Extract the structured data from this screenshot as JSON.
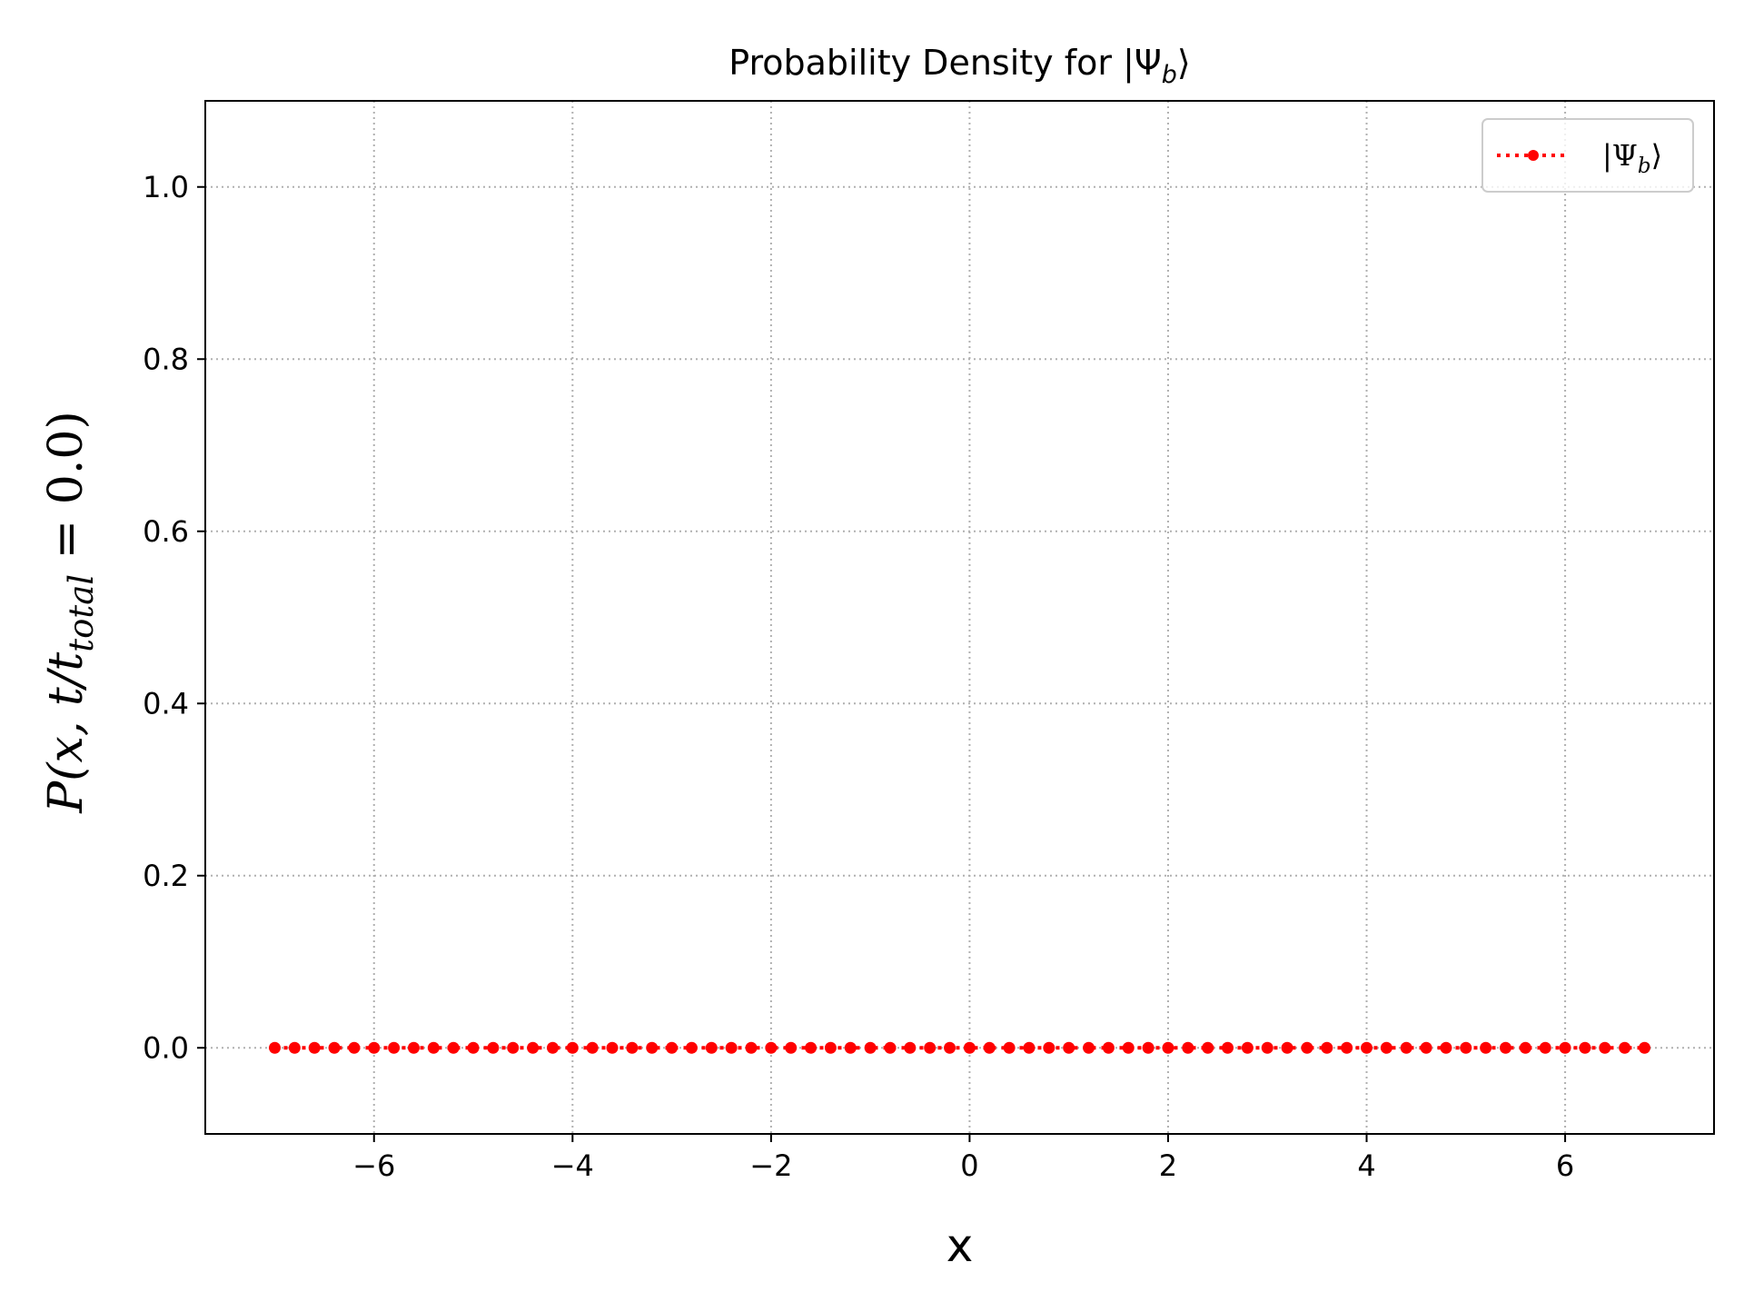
{
  "chart_data": {
    "type": "line",
    "title_text": "Probability Density for ",
    "title_math": {
      "prefix": "|Ψ",
      "sub": "b",
      "suffix": "⟩"
    },
    "xlabel": "x",
    "ylabel": {
      "a": "P(x, t/t",
      "sub": "total",
      "b": " = 0.0)"
    },
    "xlim": [
      -7.7,
      7.5
    ],
    "ylim": [
      -0.1,
      1.1
    ],
    "xticks": [
      -6,
      -4,
      -2,
      0,
      2,
      4,
      6
    ],
    "xtick_labels": [
      "−6",
      "−4",
      "−2",
      "0",
      "2",
      "4",
      "6"
    ],
    "yticks": [
      0.0,
      0.2,
      0.4,
      0.6,
      0.8,
      1.0
    ],
    "ytick_labels": [
      "0.0",
      "0.2",
      "0.4",
      "0.6",
      "0.8",
      "1.0"
    ],
    "grid": true,
    "grid_style": "dotted",
    "legend_position": "top-right",
    "series": [
      {
        "name_math": {
          "prefix": "|Ψ",
          "sub": "b",
          "suffix": "⟩"
        },
        "color": "#ff0000",
        "linestyle": "dotted",
        "marker": "circle",
        "x_start": -7.0,
        "x_end": 6.8,
        "x_step": 0.2,
        "y_value": 0.0
      }
    ]
  }
}
